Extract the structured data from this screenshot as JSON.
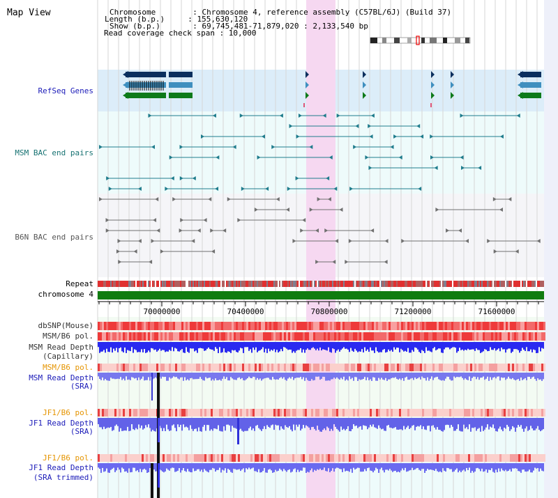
{
  "header": {
    "title": "Map View",
    "info_lines": [
      "Chromosome        : Chromosome 4, reference assembly (C57BL/6J) (Build 37)",
      "Length (b.p.)     : 155,630,120",
      "Show (b.p.)       : 69,745,481-71,879,020 : 2,133,540 bp",
      "Read coverage check span : 10,000"
    ]
  },
  "colors": {
    "refseq_bg": "#dcedf9",
    "msm_bac_bg": "#eefbfb",
    "b6n_bac_bg": "#f5f5f8",
    "highlight": "#f6d8f1",
    "chromosome_bar": "#107c10",
    "refseq_label": "#1a1ab8",
    "msm_bac_label": "#167272",
    "b6n_bac_label": "#555555",
    "orange_label": "#e59400",
    "blue_label": "#1a1ab8",
    "gray_label": "#333333"
  },
  "tracks": {
    "refseq": "RefSeq Genes",
    "msm_bac": "MSM BAC end pairs",
    "b6n_bac": "B6N BAC end pairs",
    "repeat": "Repeat",
    "chromosome": "chromosome 4",
    "dbsnp": "dbSNP(Mouse)",
    "msm_b6_pol_1": "MSM/B6 pol.",
    "msm_depth_cap_1": "MSM Read Depth",
    "msm_depth_cap_2": "(Capillary)",
    "msm_b6_pol_2": "MSM/B6 pol.",
    "msm_depth_sra_1": "MSM Read Depth",
    "msm_depth_sra_2": "(SRA)",
    "jf1_b6_pol_1": "JF1/B6 pol.",
    "jf1_depth_sra_1": "JF1 Read Depth",
    "jf1_depth_sra_2": "(SRA)",
    "jf1_b6_pol_2": "JF1/B6 pol.",
    "jf1_depth_trim_1": "JF1 Read Depth",
    "jf1_depth_trim_2": "(SRA trimmed)"
  },
  "axis": {
    "ticks": [
      "70000000",
      "70400000",
      "70800000",
      "71200000",
      "71600000"
    ]
  }
}
